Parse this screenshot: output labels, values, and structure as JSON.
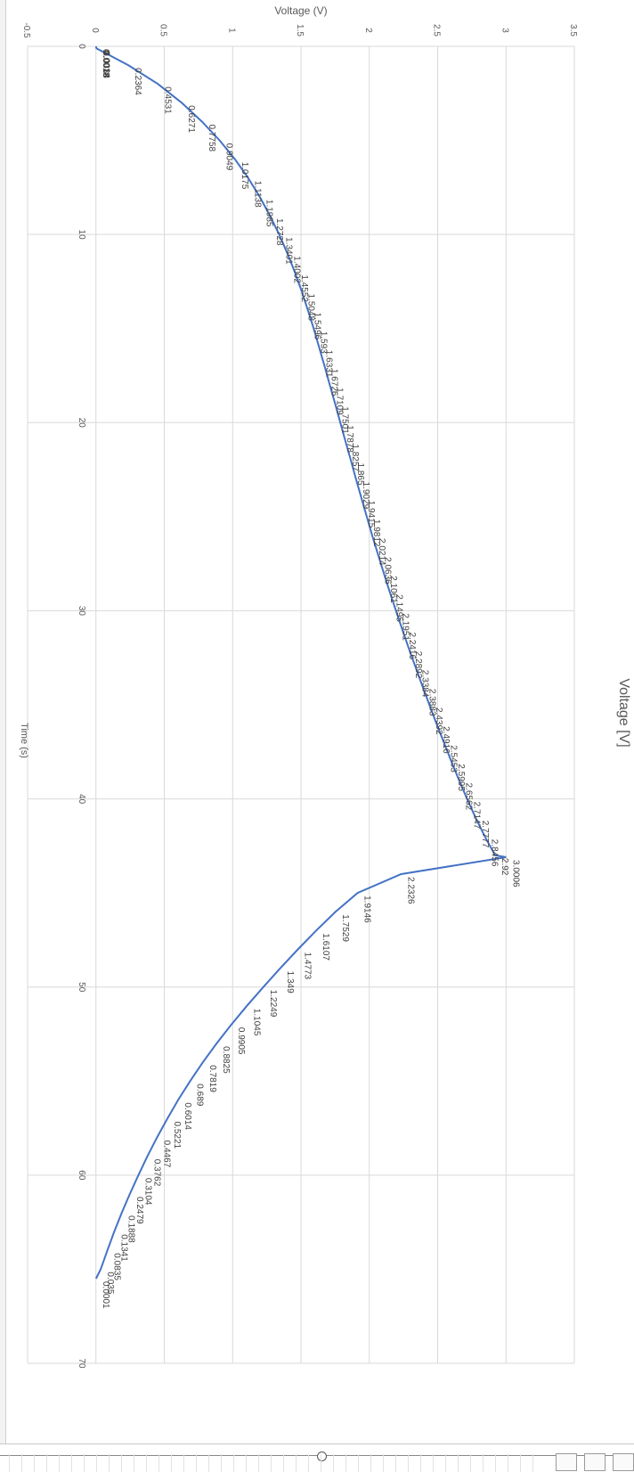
{
  "chart_data": {
    "type": "line",
    "title": "",
    "orientation": "rotated-90-clockwise",
    "xlabel": "Time (s)",
    "ylabel": "Voltage (V)",
    "side_label": "Voltage [V]",
    "xlim": [
      0,
      70
    ],
    "ylim": [
      -0.5,
      3.5
    ],
    "x_ticks": [
      "0",
      "10",
      "20",
      "30",
      "40",
      "50",
      "60",
      "70"
    ],
    "y_ticks": [
      "-0.5",
      "0",
      "0.5",
      "1",
      "1.5",
      "2",
      "2.5",
      "3",
      "3.5"
    ],
    "grid": true,
    "legend": "none",
    "line_color": "#4472c4",
    "series": [
      {
        "points": [
          {
            "x": 0.0,
            "y": 0.0,
            "label": "0"
          },
          {
            "x": 0.05,
            "y": 0.0018,
            "label": "0.0018"
          },
          {
            "x": 0.1,
            "y": 0.0034,
            "label": "0.0034"
          },
          {
            "x": 0.1,
            "y": 0.0018,
            "label": "0.0018"
          },
          {
            "x": 1.0,
            "y": 0.2364,
            "label": "0.2364"
          },
          {
            "x": 2.0,
            "y": 0.4531,
            "label": "0.4531"
          },
          {
            "x": 3.0,
            "y": 0.6271,
            "label": "0.6271"
          },
          {
            "x": 4.0,
            "y": 0.7758,
            "label": "0.7758"
          },
          {
            "x": 5.0,
            "y": 0.9049,
            "label": "0.9049"
          },
          {
            "x": 6.0,
            "y": 1.0175,
            "label": "1.0175"
          },
          {
            "x": 7.0,
            "y": 1.1138,
            "label": "1.1138"
          },
          {
            "x": 8.0,
            "y": 1.1985,
            "label": "1.1985"
          },
          {
            "x": 9.0,
            "y": 1.2728,
            "label": "1.2728"
          },
          {
            "x": 10.0,
            "y": 1.3401,
            "label": "1.3401"
          },
          {
            "x": 11.0,
            "y": 1.4002,
            "label": "1.4002"
          },
          {
            "x": 12.0,
            "y": 1.4552,
            "label": "1.4552"
          },
          {
            "x": 13.0,
            "y": 1.5048,
            "label": "1.5048"
          },
          {
            "x": 14.0,
            "y": 1.5496,
            "label": "1.5496"
          },
          {
            "x": 15.0,
            "y": 1.593,
            "label": "1.593"
          },
          {
            "x": 16.0,
            "y": 1.6331,
            "label": "1.6331"
          },
          {
            "x": 17.0,
            "y": 1.6726,
            "label": "1.6726"
          },
          {
            "x": 18.0,
            "y": 1.7109,
            "label": "1.7109"
          },
          {
            "x": 19.0,
            "y": 1.7501,
            "label": "1.7501"
          },
          {
            "x": 20.0,
            "y": 1.7878,
            "label": "1.7878"
          },
          {
            "x": 21.0,
            "y": 1.8257,
            "label": "1.8257"
          },
          {
            "x": 22.0,
            "y": 1.865,
            "label": "1.865"
          },
          {
            "x": 23.0,
            "y": 1.9029,
            "label": "1.9029"
          },
          {
            "x": 24.0,
            "y": 1.9415,
            "label": "1.9415"
          },
          {
            "x": 25.0,
            "y": 1.9812,
            "label": "1.9812"
          },
          {
            "x": 26.0,
            "y": 2.0214,
            "label": "2.0214"
          },
          {
            "x": 27.0,
            "y": 2.0636,
            "label": "2.0636"
          },
          {
            "x": 28.0,
            "y": 2.1061,
            "label": "2.1061"
          },
          {
            "x": 29.0,
            "y": 2.1495,
            "label": "2.1495"
          },
          {
            "x": 30.0,
            "y": 2.1951,
            "label": "2.1951"
          },
          {
            "x": 31.0,
            "y": 2.2416,
            "label": "2.2416"
          },
          {
            "x": 32.0,
            "y": 2.2892,
            "label": "2.2892"
          },
          {
            "x": 33.0,
            "y": 2.3384,
            "label": "2.3384"
          },
          {
            "x": 34.0,
            "y": 2.3883,
            "label": "2.3883"
          },
          {
            "x": 35.0,
            "y": 2.4392,
            "label": "2.4392"
          },
          {
            "x": 36.0,
            "y": 2.4916,
            "label": "2.4916"
          },
          {
            "x": 37.0,
            "y": 2.5453,
            "label": "2.5453"
          },
          {
            "x": 38.0,
            "y": 2.5995,
            "label": "2.5995"
          },
          {
            "x": 39.0,
            "y": 2.6562,
            "label": "2.6562"
          },
          {
            "x": 40.0,
            "y": 2.7147,
            "label": "2.7147"
          },
          {
            "x": 41.0,
            "y": 2.7777,
            "label": "2.7777"
          },
          {
            "x": 42.0,
            "y": 2.8456,
            "label": "2.8456"
          },
          {
            "x": 43.0,
            "y": 2.92,
            "label": "2.92"
          },
          {
            "x": 43.1,
            "y": 3.0006,
            "label": "3.0006"
          },
          {
            "x": 44.0,
            "y": 2.2326,
            "label": "2.2326"
          },
          {
            "x": 45.0,
            "y": 1.9146,
            "label": "1.9146"
          },
          {
            "x": 46.0,
            "y": 1.7529,
            "label": "1.7529"
          },
          {
            "x": 47.0,
            "y": 1.6107,
            "label": "1.6107"
          },
          {
            "x": 48.0,
            "y": 1.4773,
            "label": "1.4773"
          },
          {
            "x": 49.0,
            "y": 1.349,
            "label": "1.349"
          },
          {
            "x": 50.0,
            "y": 1.2249,
            "label": "1.2249"
          },
          {
            "x": 51.0,
            "y": 1.1045,
            "label": "1.1045"
          },
          {
            "x": 52.0,
            "y": 0.9905,
            "label": "0.9905"
          },
          {
            "x": 53.0,
            "y": 0.8825,
            "label": "0.8825"
          },
          {
            "x": 54.0,
            "y": 0.7819,
            "label": "0.7819"
          },
          {
            "x": 55.0,
            "y": 0.689,
            "label": "0.689"
          },
          {
            "x": 56.0,
            "y": 0.6014,
            "label": "0.6014"
          },
          {
            "x": 57.0,
            "y": 0.5221,
            "label": "0.5221"
          },
          {
            "x": 58.0,
            "y": 0.4467,
            "label": "0.4467"
          },
          {
            "x": 59.0,
            "y": 0.3762,
            "label": "0.3762"
          },
          {
            "x": 60.0,
            "y": 0.3104,
            "label": "0.3104"
          },
          {
            "x": 61.0,
            "y": 0.2479,
            "label": "0.2479"
          },
          {
            "x": 62.0,
            "y": 0.1888,
            "label": "0.1888"
          },
          {
            "x": 63.0,
            "y": 0.1341,
            "label": "0.1341"
          },
          {
            "x": 64.0,
            "y": 0.0835,
            "label": "0.0835"
          },
          {
            "x": 65.0,
            "y": 0.035,
            "label": "0.035"
          },
          {
            "x": 65.5,
            "y": 0.0001,
            "label": "0.0001"
          }
        ]
      }
    ]
  }
}
